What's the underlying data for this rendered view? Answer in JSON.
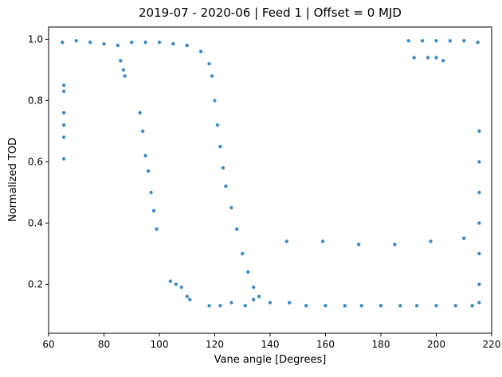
{
  "chart_data": {
    "type": "scatter",
    "title": "2019-07 - 2020-06 | Feed 1 | Offset = 0 MJD",
    "xlabel": "Vane angle [Degrees]",
    "ylabel": "Normalized TOD",
    "xlim": [
      60,
      220
    ],
    "ylim": [
      0.04,
      1.04
    ],
    "x_ticks": [
      60,
      80,
      100,
      120,
      140,
      160,
      180,
      200,
      220
    ],
    "y_ticks": [
      0.2,
      0.4,
      0.6,
      0.8,
      1.0
    ],
    "x_tick_labels": [
      "60",
      "80",
      "100",
      "120",
      "140",
      "160",
      "180",
      "200",
      "220"
    ],
    "y_tick_labels": [
      "0.2",
      "0.4",
      "0.6",
      "0.8",
      "1.0"
    ],
    "grid": false,
    "legend": "none",
    "marker_color": "#1f77b4",
    "series": [
      {
        "points": [
          [
            65,
            0.99
          ],
          [
            70,
            0.995
          ],
          [
            75,
            0.99
          ],
          [
            80,
            0.985
          ],
          [
            85,
            0.98
          ],
          [
            90,
            0.99
          ],
          [
            95,
            0.99
          ],
          [
            100,
            0.99
          ],
          [
            105,
            0.985
          ],
          [
            110,
            0.98
          ],
          [
            115,
            0.96
          ],
          [
            118,
            0.92
          ],
          [
            65.5,
            0.85
          ],
          [
            65.5,
            0.83
          ],
          [
            65.5,
            0.76
          ],
          [
            65.5,
            0.72
          ],
          [
            65.5,
            0.68
          ],
          [
            65.5,
            0.61
          ],
          [
            86,
            0.93
          ],
          [
            87,
            0.9
          ],
          [
            87.5,
            0.88
          ],
          [
            93,
            0.76
          ],
          [
            94,
            0.7
          ],
          [
            95,
            0.62
          ],
          [
            96,
            0.57
          ],
          [
            97,
            0.5
          ],
          [
            98,
            0.44
          ],
          [
            99,
            0.38
          ],
          [
            104,
            0.21
          ],
          [
            106,
            0.2
          ],
          [
            108,
            0.19
          ],
          [
            110,
            0.16
          ],
          [
            111,
            0.15
          ],
          [
            119,
            0.88
          ],
          [
            120,
            0.8
          ],
          [
            121,
            0.72
          ],
          [
            122,
            0.65
          ],
          [
            123,
            0.58
          ],
          [
            124,
            0.52
          ],
          [
            126,
            0.45
          ],
          [
            128,
            0.38
          ],
          [
            130,
            0.3
          ],
          [
            132,
            0.24
          ],
          [
            134,
            0.19
          ],
          [
            136,
            0.16
          ],
          [
            118,
            0.13
          ],
          [
            122,
            0.13
          ],
          [
            126,
            0.14
          ],
          [
            131,
            0.13
          ],
          [
            134,
            0.15
          ],
          [
            140,
            0.14
          ],
          [
            147,
            0.14
          ],
          [
            153,
            0.13
          ],
          [
            160,
            0.13
          ],
          [
            167,
            0.13
          ],
          [
            173,
            0.13
          ],
          [
            180,
            0.13
          ],
          [
            187,
            0.13
          ],
          [
            193,
            0.13
          ],
          [
            200,
            0.13
          ],
          [
            207,
            0.13
          ],
          [
            213,
            0.13
          ],
          [
            146,
            0.34
          ],
          [
            159,
            0.34
          ],
          [
            172,
            0.33
          ],
          [
            185,
            0.33
          ],
          [
            198,
            0.34
          ],
          [
            210,
            0.35
          ],
          [
            190,
            0.995
          ],
          [
            195,
            0.995
          ],
          [
            200,
            0.995
          ],
          [
            205,
            0.995
          ],
          [
            210,
            0.995
          ],
          [
            215,
            0.99
          ],
          [
            192,
            0.94
          ],
          [
            197,
            0.94
          ],
          [
            200,
            0.94
          ],
          [
            202.5,
            0.93
          ],
          [
            215.5,
            0.7
          ],
          [
            215.5,
            0.6
          ],
          [
            215.5,
            0.5
          ],
          [
            215.5,
            0.4
          ],
          [
            215.5,
            0.3
          ],
          [
            215.5,
            0.2
          ],
          [
            215.5,
            0.14
          ]
        ]
      }
    ]
  }
}
